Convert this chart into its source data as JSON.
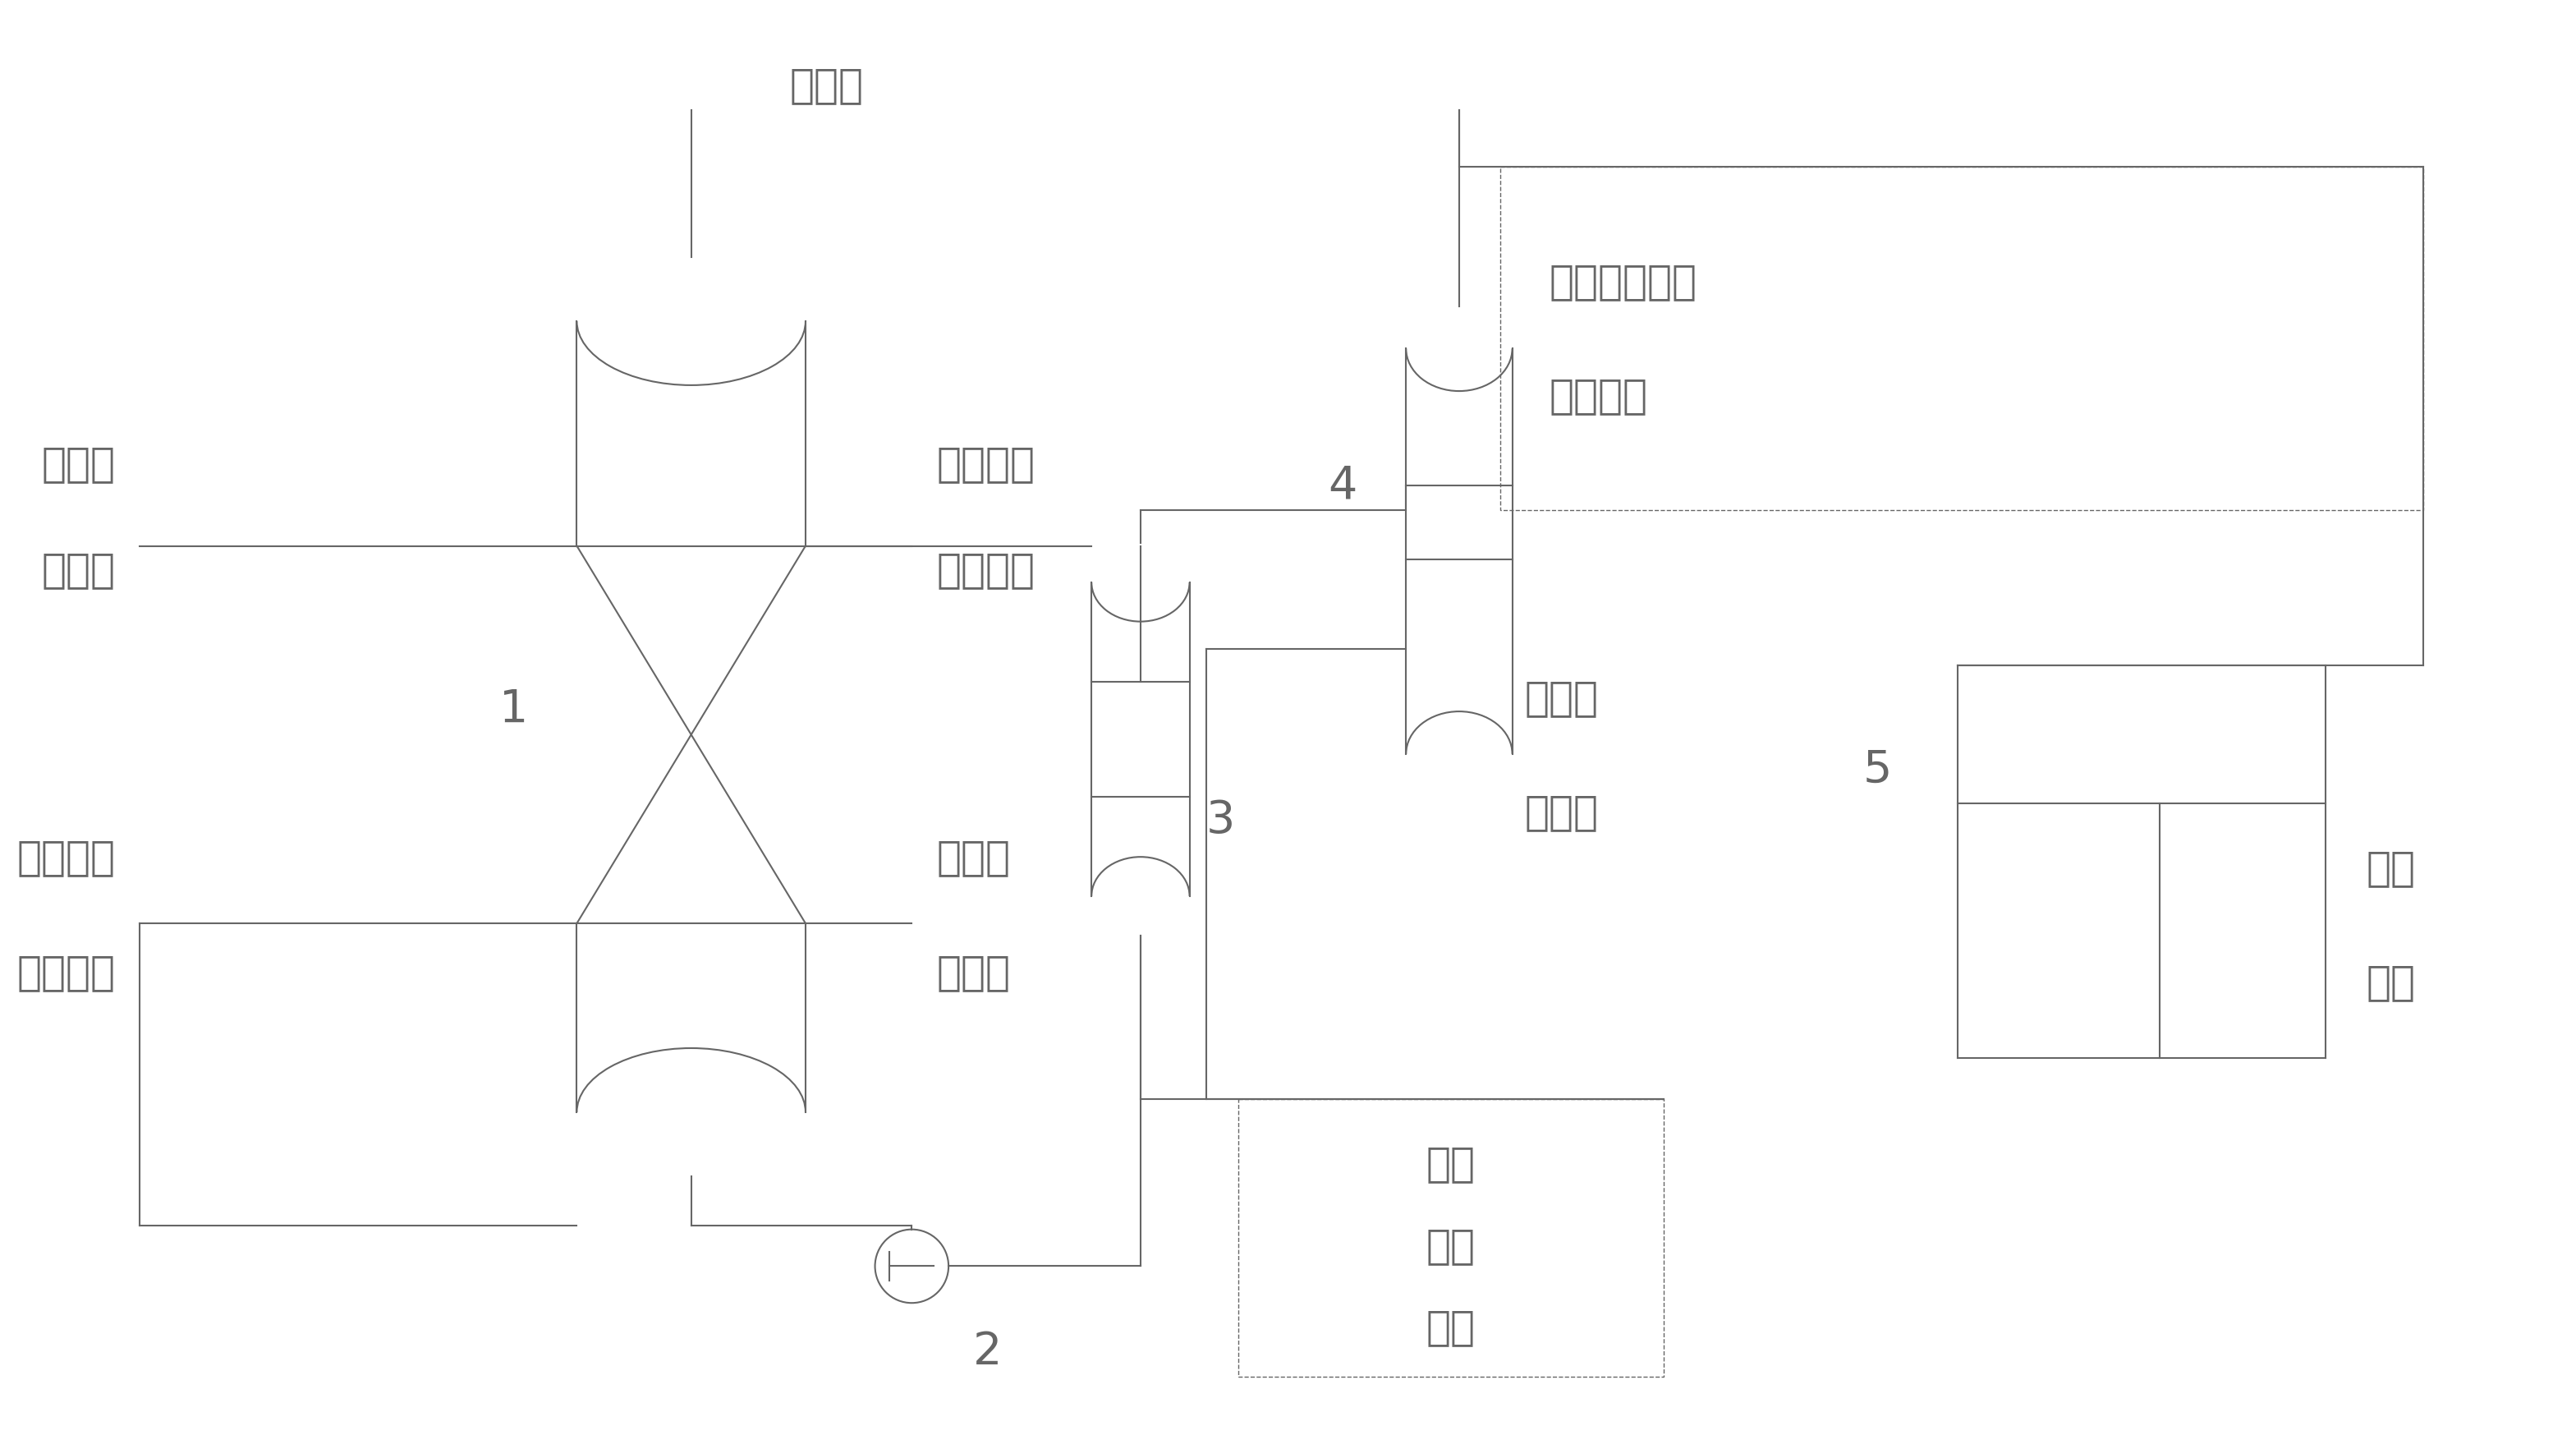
{
  "bg_color": "#ffffff",
  "line_color": "#666666",
  "text_color": "#666666",
  "lw": 1.5,
  "labels": {
    "xunhuan_shui": "循环水",
    "youqi_zi": "油气自",
    "ganluo": "干馏炉",
    "xunhuan_waisi": "循环瓦斯",
    "zi_lengque": "自冷却塔",
    "youqi_jin": "油气进",
    "kongqi_ta": "空气塔",
    "xunhuan_waisi2": "循环瓦斯",
    "fanhui_jiare": "返回加热",
    "num1": "1",
    "num2": "2",
    "num3": "3",
    "num4": "4",
    "num5": "5",
    "youni_jinru": "油污进入后续",
    "tuoyou_chuli": "脱油处理",
    "xunhuan_shui2": "循环水",
    "fantu_wa": "返图瓦",
    "jiliang": "计量",
    "houjin": "后进",
    "youni": "油泥",
    "chuli": "处理",
    "bufen": "部分"
  }
}
